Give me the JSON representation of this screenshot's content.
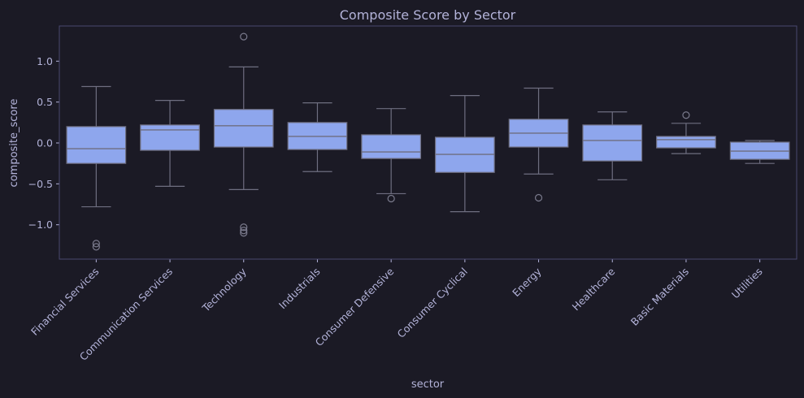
{
  "chart_data": {
    "type": "box",
    "title": "Composite Score by Sector",
    "xlabel": "sector",
    "ylabel": "composite_score",
    "ylim": [
      -1.42,
      1.43
    ],
    "yticks": [
      -1.0,
      -0.5,
      0.0,
      0.5,
      1.0
    ],
    "ytick_labels": [
      "−1.0",
      "−0.5",
      "0.0",
      "0.5",
      "1.0"
    ],
    "grid": false,
    "colors": {
      "box": "#8ea6ed",
      "line": "#6e6e80",
      "outlier": "#7a7a8c",
      "text": "#b3b3d9"
    },
    "categories": [
      "Financial Services",
      "Communication Services",
      "Technology",
      "Industrials",
      "Consumer Defensive",
      "Consumer Cyclical",
      "Energy",
      "Healthcare",
      "Basic Materials",
      "Utilities"
    ],
    "boxes": [
      {
        "category": "Financial Services",
        "whisker_low": -0.78,
        "q1": -0.25,
        "median": -0.07,
        "q3": 0.2,
        "whisker_high": 0.69,
        "outliers": [
          -1.23,
          -1.27
        ]
      },
      {
        "category": "Communication Services",
        "whisker_low": -0.53,
        "q1": -0.09,
        "median": 0.16,
        "q3": 0.22,
        "whisker_high": 0.52,
        "outliers": []
      },
      {
        "category": "Technology",
        "whisker_low": -0.57,
        "q1": -0.05,
        "median": 0.21,
        "q3": 0.41,
        "whisker_high": 0.93,
        "outliers": [
          1.3,
          -1.03,
          -1.07,
          -1.1
        ]
      },
      {
        "category": "Industrials",
        "whisker_low": -0.35,
        "q1": -0.08,
        "median": 0.08,
        "q3": 0.25,
        "whisker_high": 0.49,
        "outliers": []
      },
      {
        "category": "Consumer Defensive",
        "whisker_low": -0.62,
        "q1": -0.19,
        "median": -0.11,
        "q3": 0.1,
        "whisker_high": 0.42,
        "outliers": [
          -0.68
        ]
      },
      {
        "category": "Consumer Cyclical",
        "whisker_low": -0.84,
        "q1": -0.36,
        "median": -0.14,
        "q3": 0.07,
        "whisker_high": 0.58,
        "outliers": []
      },
      {
        "category": "Energy",
        "whisker_low": -0.38,
        "q1": -0.05,
        "median": 0.12,
        "q3": 0.29,
        "whisker_high": 0.67,
        "outliers": [
          -0.67
        ]
      },
      {
        "category": "Healthcare",
        "whisker_low": -0.45,
        "q1": -0.22,
        "median": 0.03,
        "q3": 0.22,
        "whisker_high": 0.38,
        "outliers": []
      },
      {
        "category": "Basic Materials",
        "whisker_low": -0.13,
        "q1": -0.06,
        "median": 0.04,
        "q3": 0.08,
        "whisker_high": 0.24,
        "outliers": [
          0.34
        ]
      },
      {
        "category": "Utilities",
        "whisker_low": -0.25,
        "q1": -0.2,
        "median": -0.1,
        "q3": 0.01,
        "whisker_high": 0.03,
        "outliers": []
      }
    ]
  }
}
